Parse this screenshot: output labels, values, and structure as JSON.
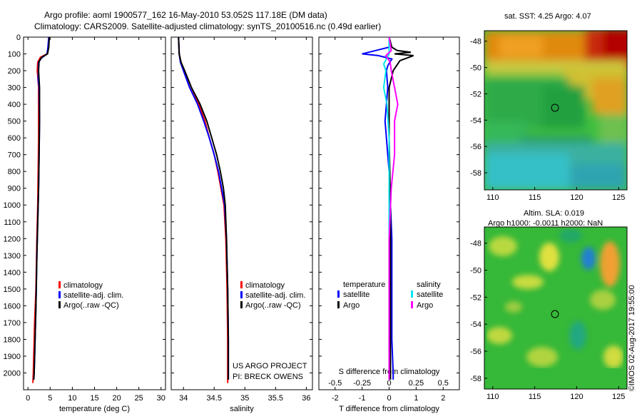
{
  "header": {
    "line1": "Argo profile: aoml 1900577_162 16-May-2010 53.052S 117.18E (DM data)",
    "line2": "Climatology: CARS2009. Satellite-adjusted climatology: synTS_20100516.nc (0.49d earlier)"
  },
  "project": {
    "line1": "US ARGO PROJECT",
    "line2": "PI: BRECK OWENS"
  },
  "credit": "©IMOS 02-Aug-2017 19:55:00",
  "colors": {
    "climatology": "#ff0000",
    "satellite": "#0000ff",
    "argo": "#000000",
    "satellite_diff_s": "#00e5ee",
    "argo_diff_s": "#ff00ff",
    "sst_map": "mixed green/orange/red",
    "sla_map": "green/yellow"
  },
  "chart_data": [
    {
      "id": "temperature",
      "type": "line",
      "xlabel": "temperature (deg C)",
      "ylabel": "",
      "xlim": [
        -1,
        31
      ],
      "ylim": [
        2100,
        0
      ],
      "y_inverted": true,
      "xticks": [
        0,
        5,
        10,
        15,
        20,
        25,
        30
      ],
      "yticks": [
        0,
        100,
        200,
        300,
        400,
        500,
        600,
        700,
        800,
        900,
        1000,
        1100,
        1200,
        1300,
        1400,
        1500,
        1600,
        1700,
        1800,
        1900,
        2000
      ],
      "legend": [
        "climatology",
        "satellite-adj. clim.",
        "Argo(..raw -QC)"
      ],
      "legend_position": "lower-center",
      "series": [
        {
          "name": "climatology",
          "color": "#ff0000",
          "points": [
            [
              4.8,
              0
            ],
            [
              4.6,
              60
            ],
            [
              4.3,
              100
            ],
            [
              2.8,
              120
            ],
            [
              2.2,
              150
            ],
            [
              2.1,
              200
            ],
            [
              2.4,
              300
            ],
            [
              2.4,
              500
            ],
            [
              2.4,
              600
            ],
            [
              2.3,
              800
            ],
            [
              2.2,
              1000
            ],
            [
              2.0,
              1200
            ],
            [
              1.8,
              1500
            ],
            [
              1.5,
              1700
            ],
            [
              1.2,
              2000
            ],
            [
              1.1,
              2060
            ]
          ]
        },
        {
          "name": "satellite-adj. clim.",
          "color": "#0000ff",
          "points": [
            [
              4.7,
              0
            ],
            [
              4.5,
              60
            ],
            [
              4.3,
              100
            ],
            [
              3.0,
              125
            ],
            [
              2.4,
              150
            ],
            [
              2.3,
              250
            ],
            [
              2.5,
              300
            ],
            [
              2.6,
              500
            ],
            [
              2.5,
              700
            ],
            [
              2.4,
              900
            ],
            [
              2.2,
              1100
            ],
            [
              2.0,
              1300
            ],
            [
              1.8,
              1600
            ],
            [
              1.6,
              1800
            ],
            [
              1.4,
              2000
            ],
            [
              1.3,
              2040
            ]
          ]
        },
        {
          "name": "Argo(..raw -QC)",
          "color": "#000000",
          "points": [
            [
              4.8,
              0
            ],
            [
              4.7,
              60
            ],
            [
              4.4,
              100
            ],
            [
              3.1,
              120
            ],
            [
              2.5,
              145
            ],
            [
              2.4,
              200
            ],
            [
              2.6,
              300
            ],
            [
              2.6,
              500
            ],
            [
              2.5,
              700
            ],
            [
              2.4,
              900
            ],
            [
              2.2,
              1100
            ],
            [
              2.0,
              1300
            ],
            [
              1.8,
              1600
            ],
            [
              1.6,
              1800
            ],
            [
              1.4,
              2000
            ],
            [
              1.3,
              2040
            ]
          ]
        }
      ]
    },
    {
      "id": "salinity",
      "type": "line",
      "xlabel": "salinity",
      "ylabel": "",
      "xlim": [
        33.8,
        36.1
      ],
      "ylim": [
        2100,
        0
      ],
      "y_inverted": true,
      "xticks": [
        34,
        34.5,
        35,
        35.5,
        36
      ],
      "legend": [
        "climatology",
        "satellite-adj. clim.",
        "Argo(..raw -QC)"
      ],
      "legend_position": "lower-right",
      "series": [
        {
          "name": "climatology",
          "color": "#ff0000",
          "points": [
            [
              33.92,
              0
            ],
            [
              33.93,
              100
            ],
            [
              33.96,
              150
            ],
            [
              34.0,
              200
            ],
            [
              34.1,
              300
            ],
            [
              34.25,
              400
            ],
            [
              34.35,
              500
            ],
            [
              34.42,
              600
            ],
            [
              34.5,
              700
            ],
            [
              34.56,
              800
            ],
            [
              34.61,
              900
            ],
            [
              34.66,
              1000
            ],
            [
              34.69,
              1200
            ],
            [
              34.71,
              1500
            ],
            [
              34.72,
              1800
            ],
            [
              34.72,
              2060
            ]
          ]
        },
        {
          "name": "satellite-adj. clim.",
          "color": "#0000ff",
          "points": [
            [
              33.92,
              0
            ],
            [
              33.93,
              100
            ],
            [
              33.95,
              150
            ],
            [
              34.0,
              200
            ],
            [
              34.1,
              300
            ],
            [
              34.23,
              400
            ],
            [
              34.33,
              500
            ],
            [
              34.42,
              600
            ],
            [
              34.5,
              700
            ],
            [
              34.57,
              800
            ],
            [
              34.62,
              900
            ],
            [
              34.67,
              1000
            ],
            [
              34.7,
              1200
            ],
            [
              34.72,
              1500
            ],
            [
              34.73,
              1800
            ],
            [
              34.73,
              2040
            ]
          ]
        },
        {
          "name": "Argo(..raw -QC)",
          "color": "#000000",
          "points": [
            [
              33.92,
              0
            ],
            [
              33.93,
              100
            ],
            [
              33.96,
              150
            ],
            [
              34.02,
              200
            ],
            [
              34.13,
              300
            ],
            [
              34.27,
              400
            ],
            [
              34.38,
              500
            ],
            [
              34.46,
              600
            ],
            [
              34.54,
              700
            ],
            [
              34.6,
              800
            ],
            [
              34.65,
              900
            ],
            [
              34.68,
              1000
            ],
            [
              34.7,
              1200
            ],
            [
              34.72,
              1500
            ],
            [
              34.73,
              1800
            ],
            [
              34.73,
              2040
            ]
          ]
        }
      ]
    },
    {
      "id": "difference",
      "type": "line",
      "xlabel": "T difference from climatology",
      "xlabel_top": "S difference from climatology",
      "xlim": [
        -2.6,
        2.6
      ],
      "xlim_salinity": [
        -0.65,
        0.65
      ],
      "ylim": [
        2100,
        0
      ],
      "y_inverted": true,
      "xticks": [
        -2,
        -1,
        0,
        1,
        2
      ],
      "xticks_salinity": [
        "-0.5",
        "-0.25",
        "0",
        "0.25",
        "0.5"
      ],
      "legend_headers": [
        "temperature",
        "salinity"
      ],
      "legend": [
        "satellite",
        "Argo",
        "satellite",
        "Argo"
      ],
      "legend_position": "lower-center",
      "series": [
        {
          "name": "temperature satellite",
          "color": "#0000ff",
          "points": [
            [
              0,
              0
            ],
            [
              0.0,
              60
            ],
            [
              -0.5,
              80
            ],
            [
              -1.0,
              100
            ],
            [
              -0.4,
              110
            ],
            [
              0.1,
              130
            ],
            [
              -0.05,
              170
            ],
            [
              -0.1,
              200
            ],
            [
              -0.05,
              300
            ],
            [
              -0.1,
              400
            ],
            [
              -0.15,
              500
            ],
            [
              -0.1,
              600
            ],
            [
              -0.05,
              700
            ],
            [
              0.0,
              800
            ],
            [
              0.05,
              1000
            ],
            [
              0.1,
              1200
            ],
            [
              0.1,
              1500
            ],
            [
              0.1,
              1800
            ],
            [
              0.15,
              2000
            ],
            [
              0.15,
              2040
            ]
          ]
        },
        {
          "name": "temperature Argo",
          "color": "#000000",
          "points": [
            [
              0,
              0
            ],
            [
              0.1,
              60
            ],
            [
              0.3,
              80
            ],
            [
              0.8,
              90
            ],
            [
              0.2,
              100
            ],
            [
              0.9,
              110
            ],
            [
              0.4,
              140
            ],
            [
              0.15,
              200
            ],
            [
              0.0,
              300
            ],
            [
              0.0,
              600
            ],
            [
              0.05,
              1000
            ],
            [
              0.05,
              1500
            ],
            [
              0.05,
              2040
            ]
          ]
        },
        {
          "name": "salinity satellite",
          "color": "#00e5ee",
          "points": [
            [
              0,
              0
            ],
            [
              0.0,
              100
            ],
            [
              -0.05,
              160
            ],
            [
              -0.03,
              200
            ],
            [
              -0.05,
              300
            ],
            [
              -0.02,
              400
            ],
            [
              0.0,
              600
            ],
            [
              0.0,
              1000
            ],
            [
              0.0,
              1500
            ],
            [
              0.0,
              2040
            ]
          ]
        },
        {
          "name": "salinity Argo",
          "color": "#ff00ff",
          "points": [
            [
              0,
              0
            ],
            [
              0.02,
              80
            ],
            [
              -0.03,
              110
            ],
            [
              0.01,
              150
            ],
            [
              0.02,
              200
            ],
            [
              0.05,
              300
            ],
            [
              0.08,
              400
            ],
            [
              0.05,
              500
            ],
            [
              0.05,
              700
            ],
            [
              0.02,
              900
            ],
            [
              0.0,
              1200
            ],
            [
              0.0,
              1600
            ],
            [
              0.0,
              2040
            ]
          ]
        }
      ]
    },
    {
      "id": "sst-map",
      "type": "heatmap",
      "title": "sat. SST: 4.25 Argo: 4.07",
      "xlim": [
        109,
        126
      ],
      "ylim": [
        -59.3,
        -47.2
      ],
      "xticks": [
        110,
        115,
        120,
        125
      ],
      "yticks": [
        -48,
        -50,
        -52,
        -54,
        -56,
        -58
      ],
      "marker": {
        "lon": 117.18,
        "lat": -53.052
      }
    },
    {
      "id": "sla-map",
      "type": "heatmap",
      "title": "Altim. SLA: 0.019",
      "subtitle": "Argo h1000: -0.0011 h2000: NaN",
      "xlim": [
        109,
        126
      ],
      "ylim": [
        -58.8,
        -46.8
      ],
      "xticks": [
        110,
        115,
        120,
        125
      ],
      "yticks": [
        -48,
        -50,
        -52,
        -54,
        -56,
        -58
      ],
      "marker": {
        "lon": 117.18,
        "lat": -53.052
      }
    }
  ]
}
